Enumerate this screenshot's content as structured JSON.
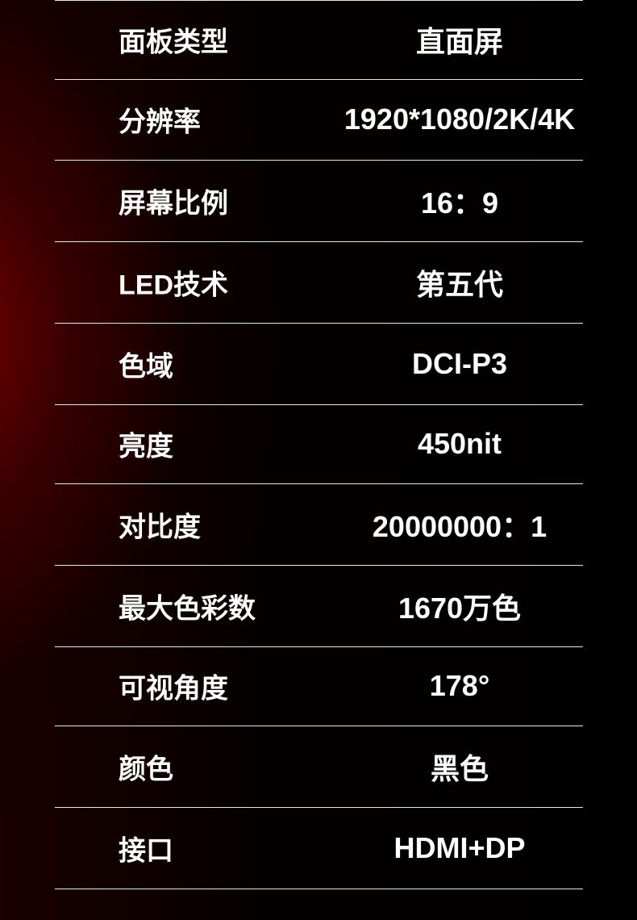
{
  "specs": [
    {
      "label": "面板类型",
      "value": "直面屏"
    },
    {
      "label": "分辨率",
      "value": "1920*1080/2K/4K"
    },
    {
      "label": "屏幕比例",
      "value": "16：9"
    },
    {
      "label": "LED技术",
      "value": "第五代"
    },
    {
      "label": "色域",
      "value": "DCI-P3"
    },
    {
      "label": "亮度",
      "value": "450nit"
    },
    {
      "label": "对比度",
      "value": "20000000：1"
    },
    {
      "label": "最大色彩数",
      "value": "1670万色"
    },
    {
      "label": "可视角度",
      "value": "178°"
    },
    {
      "label": "颜色",
      "value": "黑色"
    },
    {
      "label": "接口",
      "value": "HDMI+DP"
    }
  ],
  "colors": {
    "background": "#000000",
    "glow": "#780000",
    "text": "#ffffff",
    "divider": "#e8e8e8"
  }
}
